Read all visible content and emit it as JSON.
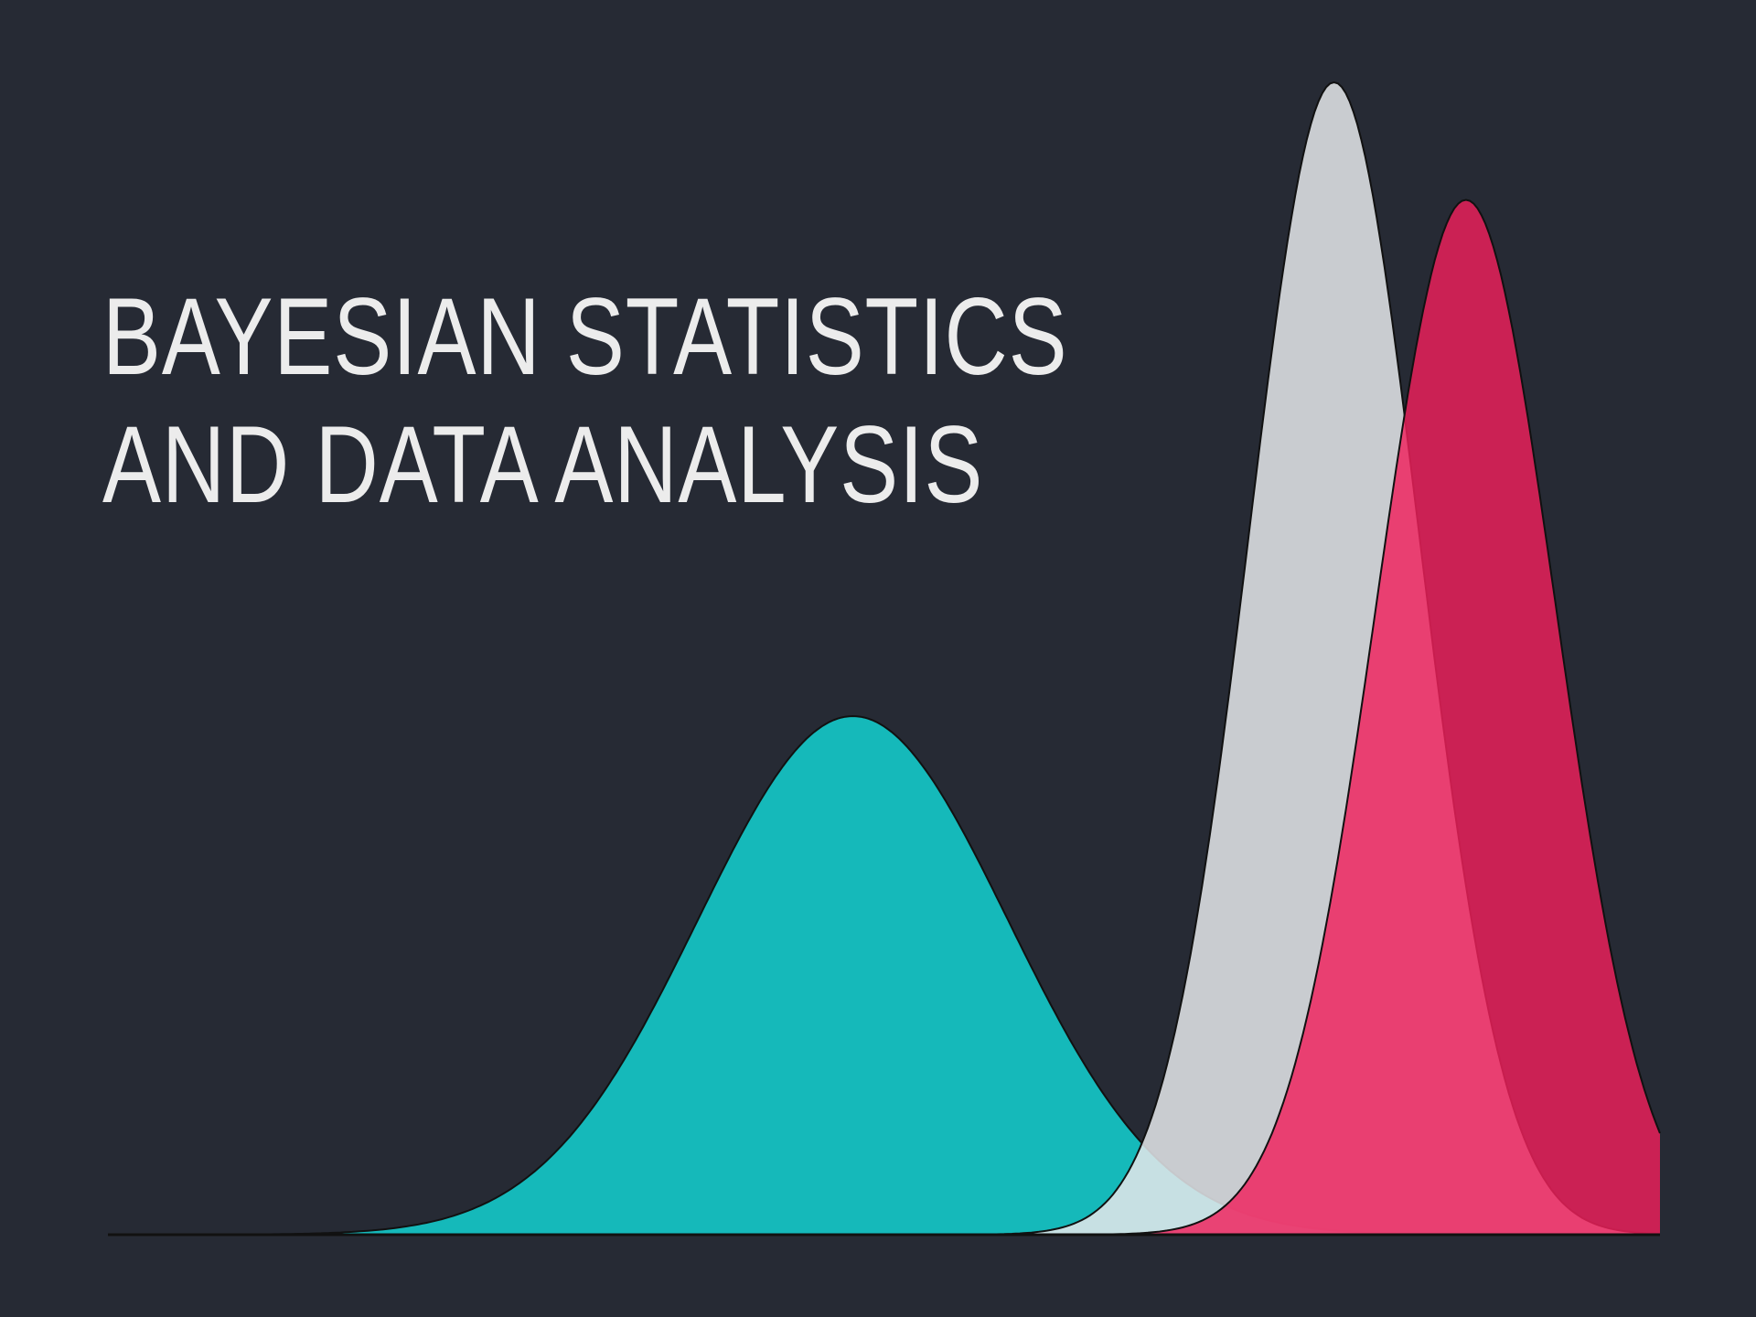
{
  "title": {
    "line1": "BAYESIAN STATISTICS",
    "line2": "AND DATA ANALYSIS"
  },
  "chart_data": {
    "type": "area",
    "title": "",
    "xlabel": "",
    "ylabel": "",
    "grid": false,
    "legend": "none",
    "series": [
      {
        "mean": 0.48,
        "sd": 0.1,
        "peak": 0.45,
        "color": "#15b9ba",
        "opacity": 1.0
      },
      {
        "mean": 0.79,
        "sd": 0.055,
        "peak": 1.0,
        "color": "#e4e6ea",
        "opacity": 0.86
      },
      {
        "mean": 0.875,
        "sd": 0.058,
        "peak": 0.898,
        "color": "#f0205b",
        "opacity": 0.82
      }
    ]
  }
}
